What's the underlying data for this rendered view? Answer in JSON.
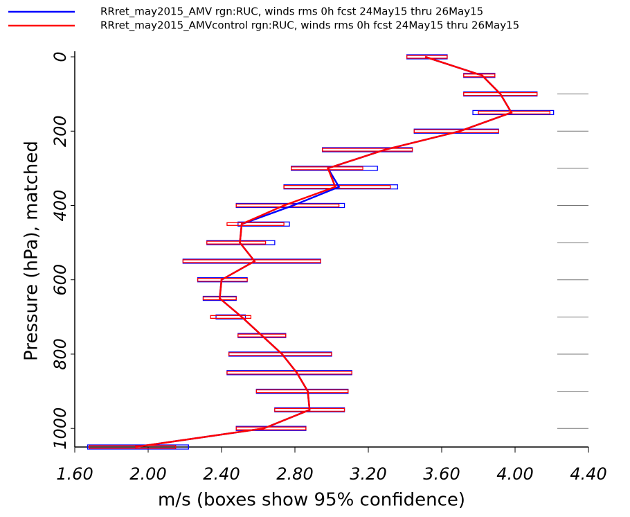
{
  "chart_data": {
    "type": "profile",
    "xlabel": "m/s (boxes show 95% confidence)",
    "ylabel": "Pressure (hPa), matched",
    "xlim": [
      1.6,
      4.4
    ],
    "xticks": [
      {
        "value": 1.6,
        "label": "1.60"
      },
      {
        "value": 2.0,
        "label": "2.00"
      },
      {
        "value": 2.4,
        "label": "2.40"
      },
      {
        "value": 2.8,
        "label": "2.80"
      },
      {
        "value": 3.2,
        "label": "3.20"
      },
      {
        "value": 3.6,
        "label": "3.60"
      },
      {
        "value": 4.0,
        "label": "4.00"
      },
      {
        "value": 4.4,
        "label": "4.40"
      }
    ],
    "ylim": [
      0,
      1050
    ],
    "y_inverted": true,
    "yticks": [
      0,
      200,
      400,
      600,
      800,
      1000
    ],
    "ygrid": [
      100,
      200,
      300,
      400,
      500,
      600,
      700,
      800,
      900,
      1000
    ],
    "y": [
      0,
      50,
      100,
      150,
      200,
      250,
      300,
      350,
      400,
      450,
      500,
      550,
      600,
      650,
      700,
      750,
      800,
      850,
      900,
      950,
      1000,
      1050
    ],
    "series": [
      {
        "name": "RRret_may2015_AMV rgn:RUC, winds rms 0h fcst  24May15 thru 26May15",
        "color": "#0000ff",
        "values": [
          3.51,
          3.82,
          3.92,
          3.98,
          3.7,
          3.29,
          2.98,
          3.04,
          2.79,
          2.51,
          2.5,
          2.58,
          2.4,
          2.39,
          2.51,
          2.62,
          2.73,
          2.81,
          2.87,
          2.88,
          2.63,
          1.93
        ],
        "lo": [
          3.41,
          3.72,
          3.72,
          3.77,
          3.45,
          2.95,
          2.78,
          2.74,
          2.48,
          2.49,
          2.32,
          2.19,
          2.27,
          2.3,
          2.37,
          2.49,
          2.44,
          2.43,
          2.59,
          2.69,
          2.48,
          1.67
        ],
        "hi": [
          3.63,
          3.89,
          4.12,
          4.21,
          3.91,
          3.44,
          3.25,
          3.36,
          3.07,
          2.77,
          2.69,
          2.94,
          2.54,
          2.48,
          2.53,
          2.75,
          3.0,
          3.11,
          3.09,
          3.07,
          2.86,
          2.22
        ]
      },
      {
        "name": "RRret_may2015_AMVcontrol rgn:RUC, winds rms 0h fcst  24May15 thru 26May15",
        "color": "#ff0000",
        "values": [
          3.51,
          3.82,
          3.92,
          3.98,
          3.7,
          3.29,
          2.98,
          3.02,
          2.74,
          2.51,
          2.5,
          2.58,
          2.4,
          2.39,
          2.51,
          2.62,
          2.73,
          2.81,
          2.87,
          2.88,
          2.63,
          1.93
        ],
        "lo": [
          3.41,
          3.72,
          3.72,
          3.8,
          3.45,
          2.95,
          2.78,
          2.74,
          2.48,
          2.43,
          2.32,
          2.19,
          2.27,
          2.3,
          2.34,
          2.49,
          2.44,
          2.43,
          2.59,
          2.69,
          2.48,
          1.68
        ],
        "hi": [
          3.63,
          3.89,
          4.12,
          4.19,
          3.91,
          3.44,
          3.17,
          3.32,
          3.04,
          2.74,
          2.64,
          2.94,
          2.54,
          2.48,
          2.56,
          2.75,
          3.0,
          3.11,
          3.09,
          3.07,
          2.86,
          2.15
        ]
      }
    ]
  }
}
